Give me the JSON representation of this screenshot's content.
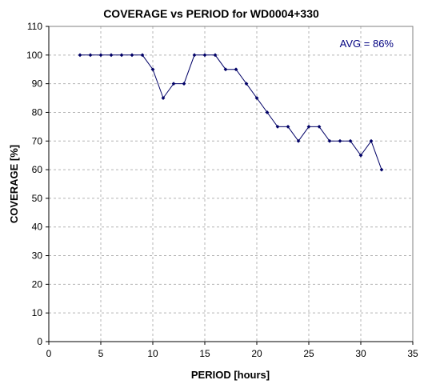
{
  "chart_data": {
    "type": "line",
    "title": "COVERAGE vs PERIOD for WD0004+330",
    "xlabel": "PERIOD [hours]",
    "ylabel": "COVERAGE [%]",
    "xlim": [
      0,
      35
    ],
    "ylim": [
      0,
      110
    ],
    "xticks": [
      0,
      5,
      10,
      15,
      20,
      25,
      30,
      35
    ],
    "yticks": [
      0,
      10,
      20,
      30,
      40,
      50,
      60,
      70,
      80,
      90,
      100,
      110
    ],
    "grid": true,
    "annotation": "AVG = 86%",
    "colors": {
      "series": "#000066",
      "annotation": "#000080",
      "grid": "#b4b4b4"
    },
    "series": [
      {
        "x": [
          3,
          4,
          5,
          6,
          7,
          8,
          9,
          10,
          11,
          12,
          13,
          14,
          15,
          16,
          17,
          18,
          19,
          20,
          21,
          22,
          23,
          24,
          25,
          26,
          27,
          28,
          29,
          30,
          31,
          32
        ],
        "y": [
          100,
          100,
          100,
          100,
          100,
          100,
          100,
          95,
          85,
          90,
          90,
          100,
          100,
          100,
          95,
          95,
          90,
          85,
          80,
          75,
          75,
          70,
          75,
          75,
          70,
          70,
          70,
          65,
          70,
          60
        ]
      }
    ]
  }
}
